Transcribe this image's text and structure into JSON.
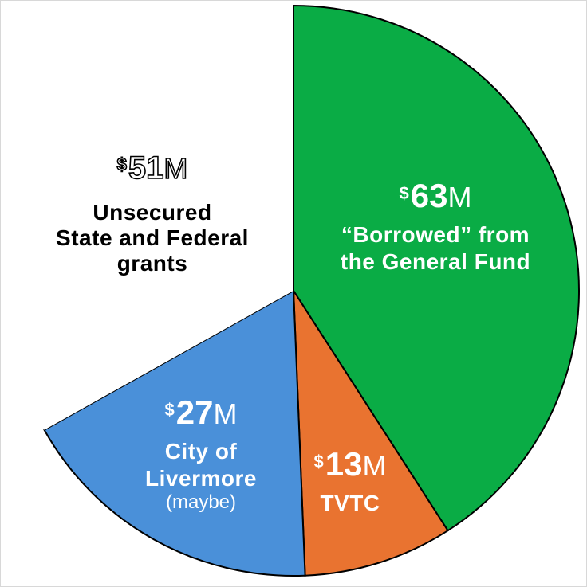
{
  "chart_data": {
    "type": "pie",
    "start_angle_deg": 0,
    "direction": "clockwise",
    "slices": [
      {
        "name": "“Borrowed” from the General Fund",
        "value": 63,
        "currency": "$",
        "amount": "63",
        "unit": "M",
        "label_lines": [
          "“Borrowed” from",
          "the General Fund"
        ],
        "note": "",
        "color": "#0aac45",
        "label_color": "#ffffff",
        "exploded": false
      },
      {
        "name": "TVTC",
        "value": 13,
        "currency": "$",
        "amount": "13",
        "unit": "M",
        "label_lines": [
          "TVTC"
        ],
        "note": "",
        "color": "#e97330",
        "label_color": "#ffffff",
        "exploded": false
      },
      {
        "name": "City of Livermore",
        "value": 27,
        "currency": "$",
        "amount": "27",
        "unit": "M",
        "label_lines": [
          "City of",
          "Livermore"
        ],
        "note": "(maybe)",
        "color": "#4a90d9",
        "label_color": "#ffffff",
        "exploded": false
      },
      {
        "name": "Unsecured State and Federal grants",
        "value": 51,
        "currency": "$",
        "amount": "51",
        "unit": "M",
        "label_lines": [
          "Unsecured",
          "State and Federal",
          "grants"
        ],
        "note": "",
        "color": "#ffffff",
        "label_color": "#000000",
        "exploded": false,
        "outlined_amount": true
      }
    ],
    "slice_border_color": "#000000"
  }
}
